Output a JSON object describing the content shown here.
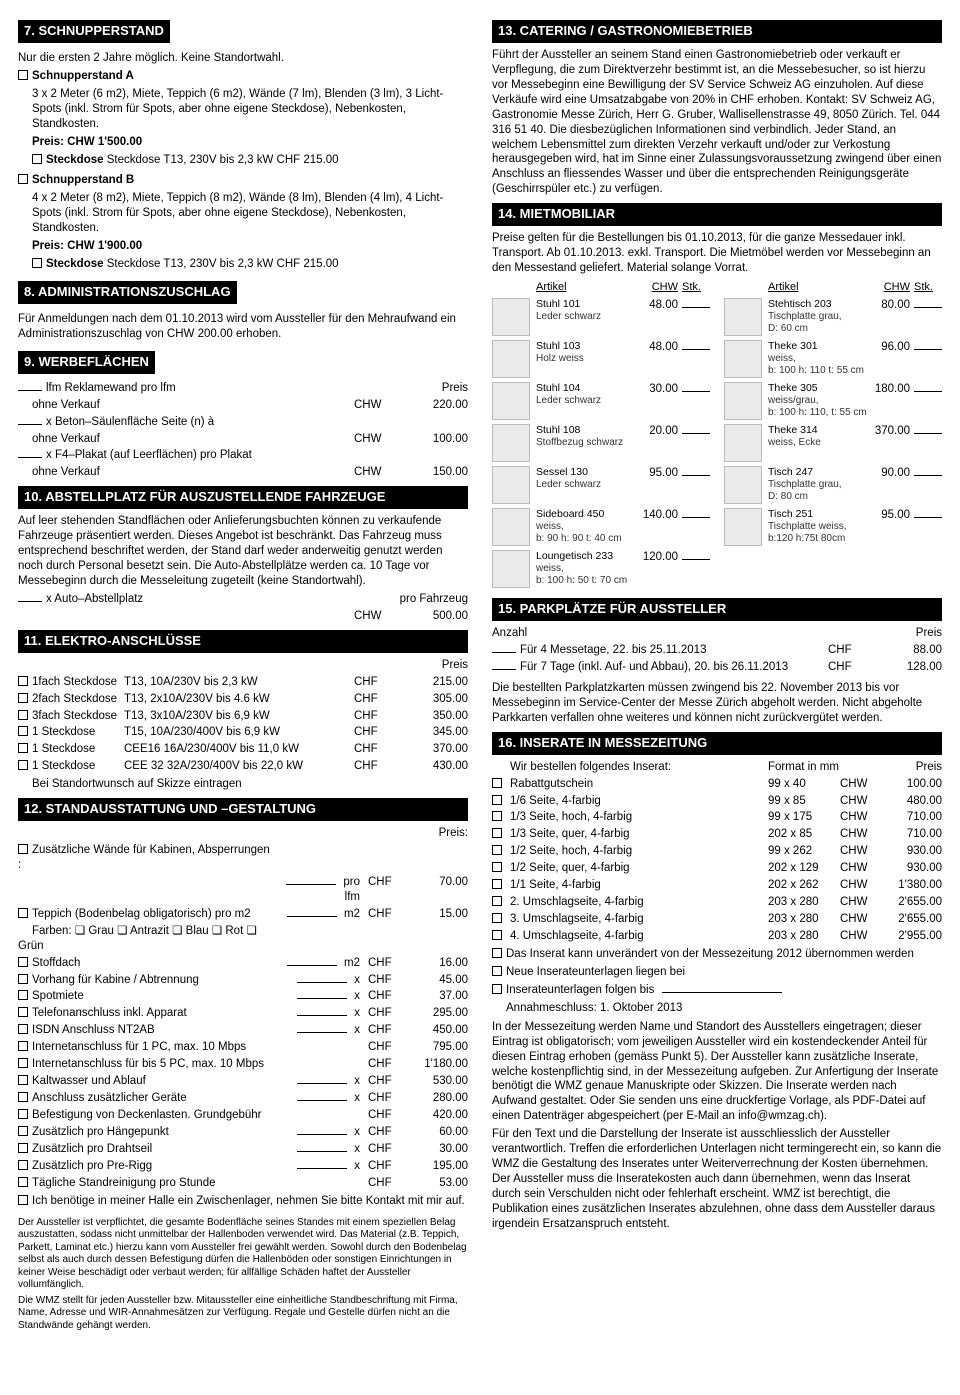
{
  "s7": {
    "title": "7. SCHNUPPERSTAND",
    "intro": "Nur die ersten 2 Jahre möglich. Keine Standortwahl.",
    "a_label": "Schnupperstand A",
    "a_desc": "3 x 2 Meter (6 m2), Miete, Teppich (6 m2), Wände (7 lm), Blenden (3 lm), 3 Licht-Spots (inkl. Strom für Spots, aber ohne eigene Steckdose), Nebenkosten, Standkosten.",
    "a_price": "Preis: CHW 1'500.00",
    "a_steck": "Steckdose T13, 230V bis 2,3 kW CHF 215.00",
    "b_label": "Schnupperstand B",
    "b_desc": "4 x 2 Meter (8 m2), Miete, Teppich (8 m2), Wände (8 lm), Blenden (4 lm), 4 Licht-Spots (inkl. Strom für Spots, aber ohne eigene Steckdose), Nebenkosten, Standkosten.",
    "b_price": "Preis: CHW 1'900.00",
    "b_steck": "Steckdose T13, 230V bis 2,3 kW CHF 215.00"
  },
  "s8": {
    "title": "8. ADMINISTRATIONSZUSCHLAG",
    "text": "Für Anmeldungen nach dem 01.10.2013 wird vom Aussteller für den Mehraufwand ein Administrationszuschlag von CHW 200.00 erhoben."
  },
  "s9": {
    "title": "9. WERBEFLÄCHEN",
    "preis": "Preis",
    "r1": "lfm Reklamewand pro lfm",
    "r1o": "ohne Verkauf",
    "r1c": "CHW",
    "r1p": "220.00",
    "r2": "x Beton–Säulenfläche Seite (n) à",
    "r2o": "ohne Verkauf",
    "r2c": "CHW",
    "r2p": "100.00",
    "r3": "x F4–Plakat (auf Leerflächen) pro Plakat",
    "r3o": "ohne Verkauf",
    "r3c": "CHW",
    "r3p": "150.00"
  },
  "s10": {
    "title": "10. ABSTELLPLATZ FÜR AUSZUSTELLENDE FAHRZEUGE",
    "text": "Auf leer stehenden Standflächen oder Anlieferungsbuchten können zu verkaufende Fahrzeuge präsentiert werden. Dieses Angebot ist beschränkt. Das Fahrzeug muss entsprechend beschriftet werden, der Stand darf weder anderweitig genutzt werden noch durch Personal besetzt sein. Die Auto-Abstellplätze werden ca. 10 Tage vor Messebeginn durch die Messeleitung zugeteilt (keine Standortwahl).",
    "item": "x Auto–Abstellplatz",
    "unit": "pro Fahrzeug",
    "c": "CHW",
    "p": "500.00"
  },
  "s11": {
    "title": "11. ELEKTRO-ANSCHLÜSSE",
    "preis": "Preis",
    "rows": [
      {
        "a": "1fach Steckdose",
        "b": "T13, 10A/230V bis 2,3 kW",
        "c": "CHF",
        "p": "215.00"
      },
      {
        "a": "2fach Steckdose",
        "b": "T13, 2x10A/230V bis 4.6 kW",
        "c": "CHF",
        "p": "305.00"
      },
      {
        "a": "3fach Steckdose",
        "b": "T13, 3x10A/230V bis 6,9 kW",
        "c": "CHF",
        "p": "350.00"
      },
      {
        "a": "1 Steckdose",
        "b": "T15, 10A/230/400V bis 6,9 kW",
        "c": "CHF",
        "p": "345.00"
      },
      {
        "a": "1 Steckdose",
        "b": "CEE16 16A/230/400V bis 11,0 kW",
        "c": "CHF",
        "p": "370.00"
      },
      {
        "a": "1 Steckdose",
        "b": "CEE 32 32A/230/400V bis 22,0 kW",
        "c": "CHF",
        "p": "430.00"
      }
    ],
    "note": "Bei Standortwunsch auf Skizze eintragen"
  },
  "s12": {
    "title": "12. STANDAUSSTATTUNG UND –GESTALTUNG",
    "preis": "Preis:",
    "rows": [
      {
        "cb": 1,
        "n": "Zusätzliche Wände für Kabinen, Absperrungen :",
        "u": "",
        "c": "",
        "p": ""
      },
      {
        "cb": 0,
        "n": "",
        "u": "pro lfm",
        "c": "CHF",
        "p": "70.00"
      },
      {
        "cb": 1,
        "n": "Teppich (Bodenbelag obligatorisch) pro m2",
        "u": "m2",
        "c": "CHF",
        "p": "15.00"
      },
      {
        "cb": 0,
        "n": "Farben: ❏ Grau ❏ Antrazit ❏ Blau ❏ Rot ❏ Grün",
        "u": "",
        "c": "",
        "p": ""
      },
      {
        "cb": 1,
        "n": "Stoffdach",
        "u": "m2",
        "c": "CHF",
        "p": "16.00"
      },
      {
        "cb": 1,
        "n": "Vorhang für Kabine / Abtrennung",
        "u": "x",
        "c": "CHF",
        "p": "45.00"
      },
      {
        "cb": 1,
        "n": "Spotmiete",
        "u": "x",
        "c": "CHF",
        "p": "37.00"
      },
      {
        "cb": 1,
        "n": "Telefonanschluss inkl. Apparat",
        "u": "x",
        "c": "CHF",
        "p": "295.00"
      },
      {
        "cb": 1,
        "n": "ISDN Anschluss NT2AB",
        "u": "x",
        "c": "CHF",
        "p": "450.00"
      },
      {
        "cb": 1,
        "n": "Internetanschluss für 1 PC, max. 10 Mbps",
        "u": "",
        "c": "CHF",
        "p": "795.00"
      },
      {
        "cb": 1,
        "n": "Internetanschluss für bis 5 PC, max. 10 Mbps",
        "u": "",
        "c": "CHF",
        "p": "1'180.00"
      },
      {
        "cb": 1,
        "n": "Kaltwasser und Ablauf",
        "u": "x",
        "c": "CHF",
        "p": "530.00"
      },
      {
        "cb": 1,
        "n": "Anschluss zusätzlicher Geräte",
        "u": "x",
        "c": "CHF",
        "p": "280.00"
      },
      {
        "cb": 1,
        "n": "Befestigung von Deckenlasten. Grundgebühr",
        "u": "",
        "c": "CHF",
        "p": "420.00"
      },
      {
        "cb": 1,
        "n": "Zusätzlich pro Hängepunkt",
        "u": "x",
        "c": "CHF",
        "p": "60.00"
      },
      {
        "cb": 1,
        "n": "Zusätzlich pro Drahtseil",
        "u": "x",
        "c": "CHF",
        "p": "30.00"
      },
      {
        "cb": 1,
        "n": "Zusätzlich pro Pre-Rigg",
        "u": "x",
        "c": "CHF",
        "p": "195.00"
      },
      {
        "cb": 1,
        "n": "Tägliche Standreinigung pro Stunde",
        "u": "",
        "c": "CHF",
        "p": "53.00"
      }
    ],
    "zw": "Ich benötige in meiner Halle ein Zwischenlager, nehmen Sie bitte Kontakt mit mir auf.",
    "fine1": "Der Aussteller ist verpflichtet, die gesamte Bodenfläche seines Standes mit einem speziellen Belag auszustatten, sodass nicht unmittelbar der Hallenboden verwendet wird. Das Material (z.B. Teppich, Parkett, Laminat etc.) hierzu kann vom Aussteller frei gewählt werden. Sowohl durch den Bodenbelag selbst als auch durch dessen Befestigung dürfen die Hallenböden oder sonstigen Einrichtungen in keiner Weise beschädigt oder verbaut werden; für allfällige Schäden haftet der Aussteller vollumfänglich.",
    "fine2": "Die WMZ stellt für jeden Aussteller bzw. Mitaussteller eine einheitliche Standbeschriftung mit Firma, Name, Adresse und WIR-Annahmesätzen zur Verfügung. Regale und Gestelle dürfen nicht an die Standwände gehängt werden."
  },
  "s13": {
    "title": "13. CATERING / GASTRONOMIEBETRIEB",
    "text": "Führt der Aussteller an seinem Stand einen Gastronomiebetrieb oder verkauft er Verpflegung, die zum Direktverzehr bestimmt ist, an die Messebesucher, so ist hierzu vor Messebeginn eine Bewilligung der SV Service Schweiz AG einzuholen. Auf diese Verkäufe wird eine Umsatzabgabe von 20% in CHF erhoben. Kontakt: SV Schweiz AG, Gastronomie Messe Zürich, Herr G. Gruber, Wallisellenstrasse 49, 8050 Zürich. Tel. 044 316 51 40. Die diesbezüglichen Informationen sind verbindlich. Jeder Stand, an welchem Lebensmittel zum direkten Verzehr verkauft und/oder zur Verkostung herausgegeben wird, hat im Sinne einer Zulassungsvoraussetzung zwingend über einen Anschluss an fliessendes Wasser und über die entsprechenden Reinigungsgeräte (Geschirrspüler etc.) zu verfügen."
  },
  "s14": {
    "title": "14. MIETMOBILIAR",
    "intro": "Preise gelten für die Bestellungen bis 01.10.2013, für die ganze Messedauer inkl. Transport. Ab 01.10.2013. exkl. Transport. Die Mietmöbel werden vor Messebeginn an den Messestand geliefert. Material solange Vorrat.",
    "h_art": "Artikel",
    "h_chw": "CHW",
    "h_stk": "Stk.",
    "left": [
      {
        "n": "Stuhl 101",
        "s": "Leder schwarz",
        "p": "48.00"
      },
      {
        "n": "Stuhl 103",
        "s": "Holz weiss",
        "p": "48.00"
      },
      {
        "n": "Stuhl 104",
        "s": "Leder schwarz",
        "p": "30.00"
      },
      {
        "n": "Stuhl 108",
        "s": "Stoffbezug schwarz",
        "p": "20.00"
      },
      {
        "n": "Sessel 130",
        "s": "Leder schwarz",
        "p": "95.00"
      },
      {
        "n": "Sideboard 450",
        "s": "weiss,\nb: 90 h: 90 t: 40 cm",
        "p": "140.00"
      },
      {
        "n": "Loungetisch 233",
        "s": "weiss,\nb: 100 h: 50 t: 70 cm",
        "p": "120.00"
      }
    ],
    "right": [
      {
        "n": "Stehtisch 203",
        "s": "Tischplatte grau,\nD: 60 cm",
        "p": "80.00"
      },
      {
        "n": "Theke 301",
        "s": "weiss,\nb: 100 h: 110 t: 55 cm",
        "p": "96.00"
      },
      {
        "n": "Theke 305",
        "s": "weiss/grau,\nb: 100 h: 110, t: 55 cm",
        "p": "180.00"
      },
      {
        "n": "Theke 314",
        "s": "weiss, Ecke",
        "p": "370.00"
      },
      {
        "n": "Tisch 247",
        "s": "Tischplatte grau,\nD: 80 cm",
        "p": "90.00"
      },
      {
        "n": "Tisch 251",
        "s": "Tischplatte weiss,\nb:120 h:75t 80cm",
        "p": "95.00"
      }
    ]
  },
  "s15": {
    "title": "15. PARKPLÄTZE FÜR AUSSTELLER",
    "anz": "Anzahl",
    "preis": "Preis",
    "r1": "Für 4 Messetage, 22. bis 25.11.2013",
    "c1": "CHF",
    "p1": "88.00",
    "r2": "Für 7 Tage (inkl. Auf- und Abbau), 20. bis 26.11.2013",
    "c2": "CHF",
    "p2": "128.00",
    "note": "Die bestellten Parkplatzkarten müssen zwingend bis 22. November 2013 bis vor Messebeginn im Service-Center der Messe Zürich abgeholt werden. Nicht abgeholte Parkkarten verfallen ohne weiteres und können nicht zurückvergütet werden."
  },
  "s16": {
    "title": "16. INSERATE IN MESSEZEITUNG",
    "intro": "Wir bestellen folgendes Inserat:",
    "fmt": "Format in mm",
    "preis": "Preis",
    "rows": [
      {
        "n": "Rabattgutschein",
        "f": "99 x 40",
        "c": "CHW",
        "p": "100.00"
      },
      {
        "n": "1/6 Seite, 4-farbig",
        "f": "99 x 85",
        "c": "CHW",
        "p": "480.00"
      },
      {
        "n": "1/3 Seite, hoch, 4-farbig",
        "f": "99 x 175",
        "c": "CHW",
        "p": "710.00"
      },
      {
        "n": "1/3 Seite, quer, 4-farbig",
        "f": "202 x 85",
        "c": "CHW",
        "p": "710.00"
      },
      {
        "n": "1/2 Seite, hoch, 4-farbig",
        "f": "99 x 262",
        "c": "CHW",
        "p": "930.00"
      },
      {
        "n": "1/2 Seite, quer, 4-farbig",
        "f": "202 x 129",
        "c": "CHW",
        "p": "930.00"
      },
      {
        "n": "1/1 Seite, 4-farbig",
        "f": "202 x 262",
        "c": "CHW",
        "p": "1'380.00"
      },
      {
        "n": "2. Umschlagseite, 4-farbig",
        "f": "203 x 280",
        "c": "CHW",
        "p": "2'655.00"
      },
      {
        "n": "3. Umschlagseite, 4-farbig",
        "f": "203 x 280",
        "c": "CHW",
        "p": "2'655.00"
      },
      {
        "n": "4. Umschlagseite, 4-farbig",
        "f": "203 x 280",
        "c": "CHW",
        "p": "2'955.00"
      }
    ],
    "cb1": "Das Inserat kann unverändert von der Messezeitung 2012 übernommen werden",
    "cb2": "Neue Inserateunterlagen liegen bei",
    "cb3": "Inserateunterlagen folgen bis",
    "ann": "Annahmeschluss: 1. Oktober 2013",
    "text": "In der Messezeitung werden Name und Standort des Ausstellers eingetragen; dieser Eintrag ist obligatorisch; vom jeweiligen Aussteller wird ein kostendeckender Anteil für diesen Eintrag erhoben (gemäss Punkt 5). Der Aussteller kann zusätzliche Inserate, welche kostenpflichtig sind, in der Messezeitung aufgeben. Zur Anfertigung der Inserate benötigt die WMZ genaue Manuskripte oder Skizzen. Die Inserate werden nach Aufwand gestaltet. Oder Sie senden uns eine druckfertige Vorlage, als PDF-Datei auf einen Datenträger abgespeichert (per E-Mail an info@wmzag.ch).",
    "text2": "Für den Text und die Darstellung der Inserate ist ausschliesslich der Aussteller verantwortlich. Treffen die erforderlichen Unterlagen nicht termingerecht ein, so kann die WMZ die Gestaltung des Inserates unter Weiterverrechnung der Kosten übernehmen. Der Aussteller muss die Inseratekosten auch dann übernehmen, wenn das Inserat durch sein Verschulden nicht oder fehlerhaft erscheint. WMZ ist berechtigt, die Publikation eines zusätzlichen Inserates abzulehnen, ohne dass dem Aussteller daraus irgendein Ersatzanspruch entsteht."
  }
}
